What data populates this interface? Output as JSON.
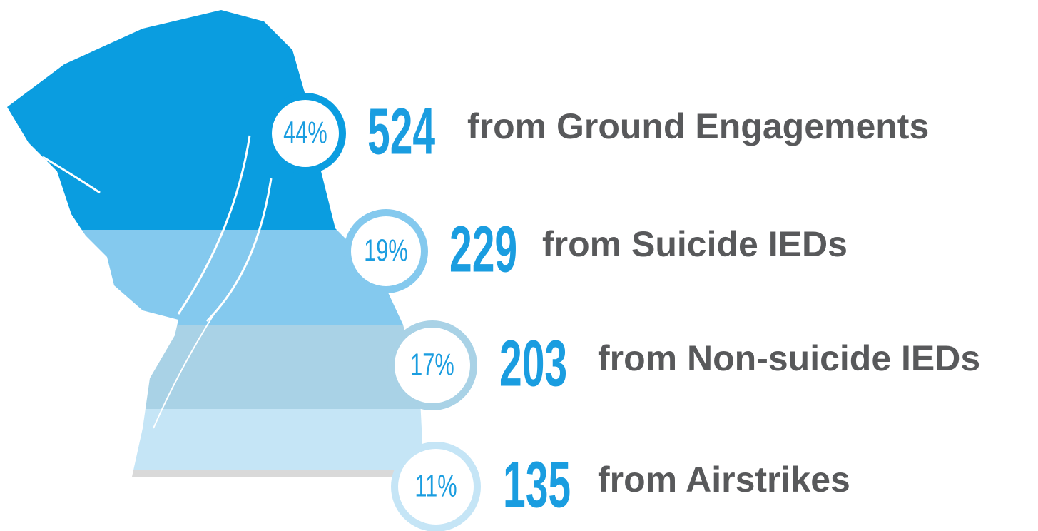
{
  "items": [
    {
      "percent": "44%",
      "count": "524",
      "label": "from Ground Engagements"
    },
    {
      "percent": "19%",
      "count": "229",
      "label": "from Suicide IEDs"
    },
    {
      "percent": "17%",
      "count": "203",
      "label": "from Non-suicide IEDs"
    },
    {
      "percent": "11%",
      "count": "135",
      "label": "from Airstrikes"
    }
  ]
}
